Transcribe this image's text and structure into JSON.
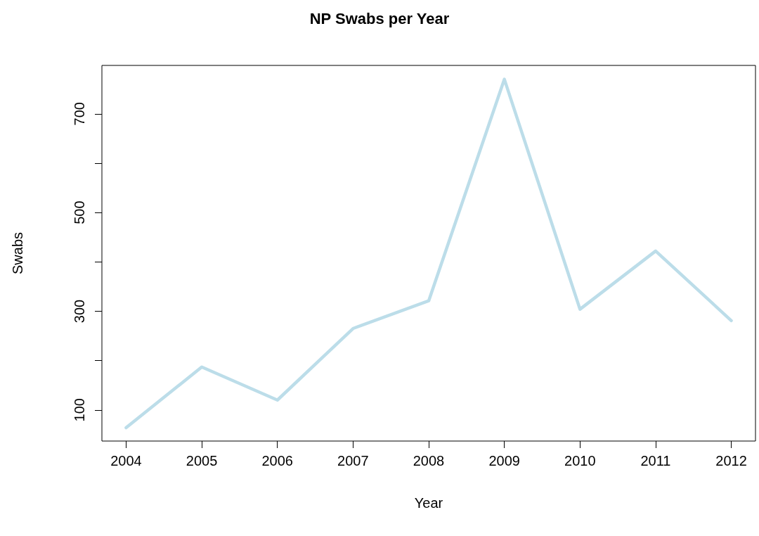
{
  "chart_data": {
    "type": "line",
    "title": "NP Swabs per Year",
    "xlabel": "Year",
    "ylabel": "Swabs",
    "x": [
      2004,
      2005,
      2006,
      2007,
      2008,
      2009,
      2010,
      2011,
      2012
    ],
    "series": [
      {
        "color": "#bcdde9",
        "values": [
          64,
          187,
          120,
          265,
          321,
          770,
          304,
          422,
          281
        ]
      }
    ],
    "xlim": [
      2003.68,
      2012.32
    ],
    "xticks": [
      2004,
      2005,
      2006,
      2007,
      2008,
      2009,
      2010,
      2011,
      2012
    ],
    "ylim": [
      37,
      798
    ],
    "yticks": [
      100,
      {
        "value": 200,
        "label": null
      },
      300,
      {
        "value": 400,
        "label": null
      },
      500,
      {
        "value": 600,
        "label": null
      },
      700
    ],
    "grid": false,
    "marker": "none",
    "line_style": "solid"
  }
}
